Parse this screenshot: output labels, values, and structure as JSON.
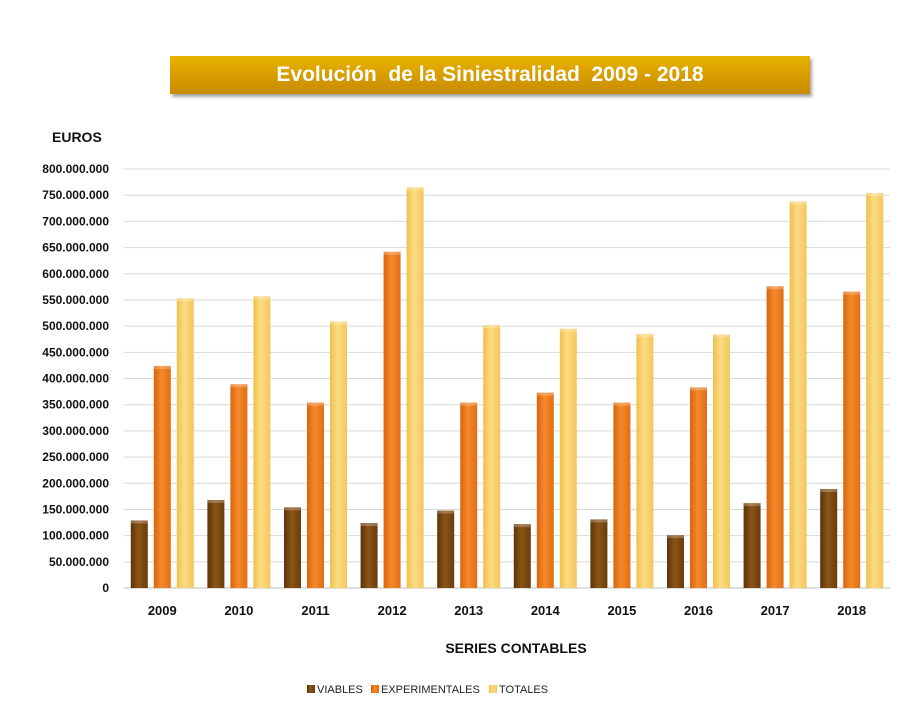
{
  "chart_data": {
    "type": "bar",
    "title": "Evolución  de la Siniestralidad  2009 - 2018",
    "ylabel": "EUROS",
    "xlabel": "SERIES CONTABLES",
    "ylim": [
      0,
      800000000
    ],
    "yticks": [
      "0",
      "50.000.000",
      "100.000.000",
      "150.000.000",
      "200.000.000",
      "250.000.000",
      "300.000.000",
      "350.000.000",
      "400.000.000",
      "450.000.000",
      "500.000.000",
      "550.000.000",
      "600.000.000",
      "650.000.000",
      "700.000.000",
      "750.000.000",
      "800.000.000"
    ],
    "categories": [
      "2009",
      "2010",
      "2011",
      "2012",
      "2013",
      "2014",
      "2015",
      "2016",
      "2017",
      "2018"
    ],
    "series": [
      {
        "name": "VIABLES",
        "color": "#7a4a12",
        "values": [
          129000000,
          168000000,
          154000000,
          124000000,
          148000000,
          122000000,
          131000000,
          101000000,
          162000000,
          189000000
        ]
      },
      {
        "name": "EXPERIMENTALES",
        "color": "#ee7a1c",
        "values": [
          424000000,
          389000000,
          354000000,
          642000000,
          354000000,
          373000000,
          354000000,
          383000000,
          576000000,
          566000000
        ]
      },
      {
        "name": "TOTALES",
        "color": "#f7cf6a",
        "values": [
          553000000,
          557000000,
          509000000,
          765000000,
          502000000,
          495000000,
          485000000,
          484000000,
          738000000,
          754000000
        ]
      }
    ],
    "grid": true,
    "legend": "bottom"
  }
}
